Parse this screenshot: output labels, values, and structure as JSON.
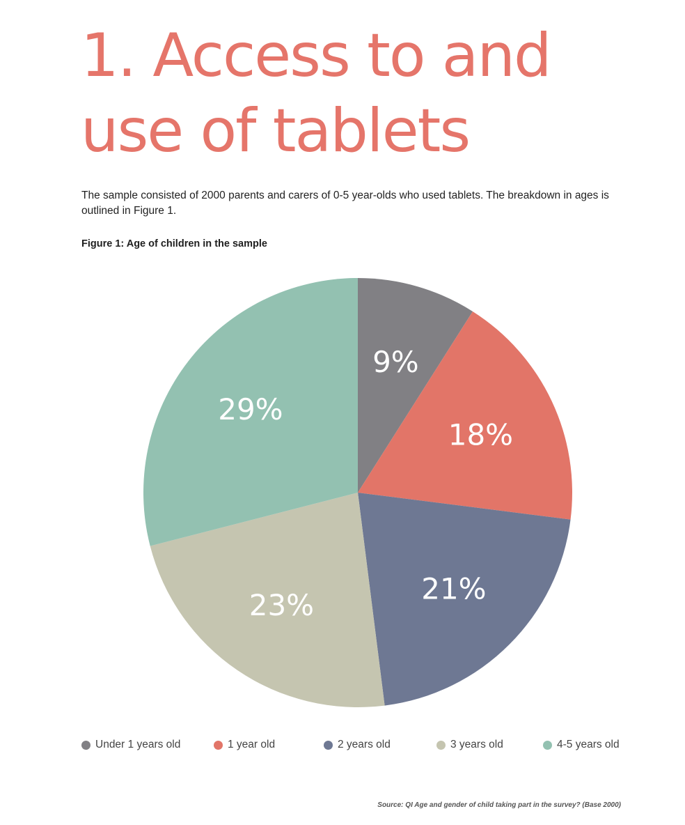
{
  "title": {
    "line1": "1. Access to and",
    "line2": "use of tablets",
    "color": "#e5756a"
  },
  "intro": "The sample consisted of 2000 parents and carers of 0-5 year-olds who used tablets. The breakdown in ages is outlined in Figure 1.",
  "figure_caption": "Figure 1: Age of children in the sample",
  "chart_data": {
    "type": "pie",
    "title": "Figure 1: Age of children in the sample",
    "start_angle_deg": 0,
    "direction": "clockwise",
    "legend_position": "bottom",
    "slices": [
      {
        "label": "Under 1 years old",
        "value": 9,
        "display": "9%",
        "color": "#818084"
      },
      {
        "label": "1 year old",
        "value": 18,
        "display": "18%",
        "color": "#e27568"
      },
      {
        "label": "2 years old",
        "value": 21,
        "display": "21%",
        "color": "#6e7893"
      },
      {
        "label": "3 years old",
        "value": 23,
        "display": "23%",
        "color": "#c5c5b0"
      },
      {
        "label": "4-5 years old",
        "value": 29,
        "display": "29%",
        "color": "#93c1b1"
      }
    ]
  },
  "legend": [
    {
      "label": "Under 1 years old",
      "color": "#818084"
    },
    {
      "label": "1 year old",
      "color": "#e27568"
    },
    {
      "label": "2 years old",
      "color": "#6e7893"
    },
    {
      "label": "3 years old",
      "color": "#c5c5b0"
    },
    {
      "label": "4-5 years old",
      "color": "#93c1b1"
    }
  ],
  "source": "Source: QI Age and gender of child taking part in the survey? (Base 2000)"
}
